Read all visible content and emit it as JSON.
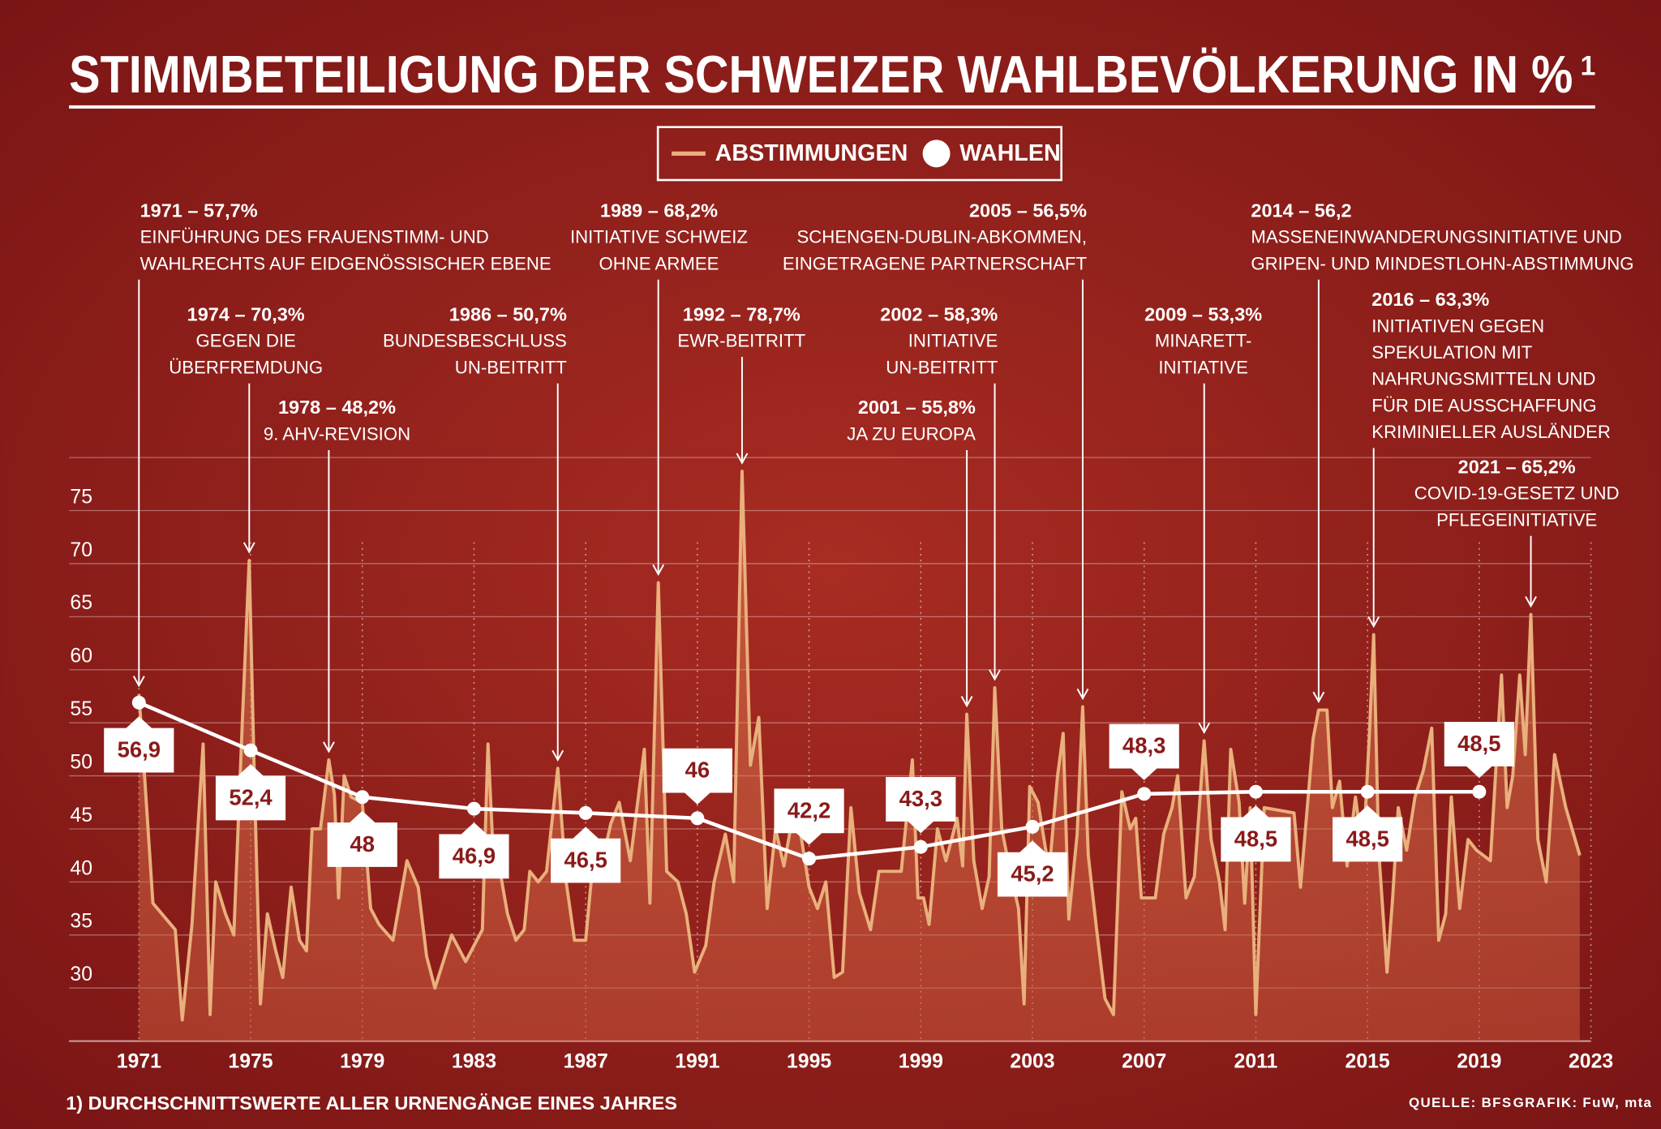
{
  "chart_data": {
    "type": "line",
    "title": "STIMMBETEILIGUNG DER SCHWEIZER WAHLBEVÖLKERUNG IN %",
    "title_footnote_mark": "1",
    "footnote": "1) DURCHSCHNITTSWERTE ALLER URNENGÄNGE EINES JAHRES",
    "source": "QUELLE: BFS",
    "credit": "GRAFIK: FuW, mta",
    "xlim": [
      1971,
      2023
    ],
    "xticks": [
      1971,
      1975,
      1979,
      1983,
      1987,
      1991,
      1995,
      1999,
      2003,
      2007,
      2011,
      2015,
      2019,
      2023
    ],
    "ylim": [
      25,
      80
    ],
    "yticks": [
      30,
      35,
      40,
      45,
      50,
      55,
      60,
      65,
      70,
      75
    ],
    "grid": true,
    "legend": "top",
    "series": [
      {
        "name": "ABSTIMMUNGEN",
        "color": "#e9b07c",
        "x": [
          1971.0,
          1971.15,
          1971.5,
          1972.3,
          1972.55,
          1972.9,
          1973.3,
          1973.55,
          1973.75,
          1974.1,
          1974.4,
          1974.7,
          1974.95,
          1975.15,
          1975.35,
          1975.6,
          1975.9,
          1976.15,
          1976.45,
          1976.75,
          1977.0,
          1977.2,
          1977.5,
          1977.8,
          1978.0,
          1978.15,
          1978.35,
          1978.6,
          1979.0,
          1979.3,
          1979.6,
          1980.1,
          1980.6,
          1981.0,
          1981.3,
          1981.6,
          1982.2,
          1982.7,
          1983.1,
          1983.3,
          1983.5,
          1983.7,
          1983.9,
          1984.2,
          1984.5,
          1984.8,
          1985.0,
          1985.3,
          1985.6,
          1986.0,
          1986.3,
          1986.6,
          1987.0,
          1987.3,
          1987.6,
          1987.9,
          1988.2,
          1988.6,
          1989.1,
          1989.3,
          1989.6,
          1989.9,
          1990.3,
          1990.6,
          1990.9,
          1991.3,
          1991.6,
          1992.0,
          1992.3,
          1992.6,
          1992.9,
          1993.2,
          1993.5,
          1993.8,
          1994.1,
          1994.4,
          1994.7,
          1995.0,
          1995.3,
          1995.6,
          1995.9,
          1996.2,
          1996.5,
          1996.8,
          1997.2,
          1997.5,
          1997.9,
          1998.3,
          1998.7,
          1998.9,
          1999.1,
          1999.3,
          1999.6,
          1999.9,
          2000.3,
          2000.5,
          2000.65,
          2000.9,
          2001.2,
          2001.45,
          2001.65,
          2001.9,
          2002.2,
          2002.5,
          2002.7,
          2002.9,
          2003.2,
          2003.6,
          2003.9,
          2004.1,
          2004.3,
          2004.6,
          2004.8,
          2005.0,
          2005.3,
          2005.6,
          2005.9,
          2006.2,
          2006.5,
          2006.7,
          2006.9,
          2007.4,
          2007.7,
          2008.0,
          2008.2,
          2008.5,
          2008.8,
          2009.15,
          2009.4,
          2009.7,
          2009.9,
          2010.1,
          2010.4,
          2010.6,
          2010.8,
          2011.0,
          2011.3,
          2012.37,
          2012.6,
          2013.05,
          2013.25,
          2013.55,
          2013.74,
          2014.0,
          2014.27,
          2014.57,
          2014.84,
          2015.07,
          2015.22,
          2015.4,
          2015.7,
          2015.9,
          2016.1,
          2016.4,
          2016.7,
          2017.0,
          2017.3,
          2017.55,
          2017.8,
          2018.0,
          2018.3,
          2018.6,
          2018.9,
          2019.4,
          2019.8,
          2020.0,
          2020.2,
          2020.45,
          2020.65,
          2020.85,
          2021.1,
          2021.4,
          2021.7,
          2022.1,
          2022.6
        ],
        "values": [
          57.7,
          52,
          38,
          35.5,
          27,
          36,
          53,
          27.5,
          40,
          37,
          35,
          55,
          70.3,
          48,
          28.5,
          37,
          33.5,
          31,
          39.5,
          34.5,
          33.5,
          45,
          45,
          51.5,
          48.2,
          38.5,
          50,
          48,
          47.5,
          37.5,
          36,
          34.5,
          42,
          39.5,
          33,
          30,
          35,
          32.5,
          34.5,
          35.5,
          53,
          42,
          41.5,
          37,
          34.5,
          35.5,
          41,
          40,
          41,
          50.7,
          40,
          34.5,
          34.5,
          43,
          42,
          45.5,
          47.5,
          42,
          52.5,
          38,
          68.2,
          41,
          40,
          37,
          31.5,
          34,
          40,
          44.5,
          40,
          78.7,
          51,
          55.5,
          37.5,
          45,
          41.5,
          46,
          44.5,
          39.5,
          37.5,
          40,
          31,
          31.5,
          47,
          39,
          35.5,
          41,
          41,
          41,
          51.5,
          38.5,
          38.5,
          36,
          45,
          42,
          46,
          41.5,
          55.8,
          42,
          37.5,
          40.5,
          58.3,
          45,
          41,
          37.5,
          28.5,
          49,
          47.5,
          41,
          50,
          54,
          36.5,
          44.5,
          56.5,
          42.5,
          35.5,
          29,
          27.5,
          48.5,
          45,
          46,
          38.5,
          38.5,
          44.5,
          47,
          50,
          38.5,
          40.5,
          53.3,
          44,
          40,
          35.5,
          52.5,
          47.5,
          38,
          47,
          27.5,
          47,
          46.5,
          39.5,
          53.5,
          56.2,
          56.2,
          47,
          49.5,
          41.5,
          48,
          42.5,
          54,
          63.3,
          43,
          31.5,
          38.5,
          47,
          43,
          48,
          50.5,
          54.5,
          34.5,
          37,
          48,
          37.5,
          44,
          43,
          42,
          59.5,
          47,
          50,
          59.5,
          52,
          65.2,
          44,
          40,
          52,
          47,
          42.5
        ]
      },
      {
        "name": "WAHLEN",
        "color": "#ffffff",
        "x": [
          1971,
          1975,
          1979,
          1983,
          1987,
          1991,
          1995,
          1999,
          2003,
          2007,
          2011,
          2015,
          2019
        ],
        "values": [
          56.9,
          52.4,
          48,
          46.9,
          46.5,
          46,
          42.2,
          43.3,
          45.2,
          48.3,
          48.5,
          48.5,
          48.5
        ],
        "value_labels": [
          "56,9",
          "52,4",
          "48",
          "46,9",
          "46,5",
          "46",
          "42,2",
          "43,3",
          "45,2",
          "48,3",
          "48,5",
          "48,5",
          "48,5"
        ]
      }
    ],
    "annotations": [
      {
        "title": "1971 – 57,7%",
        "lines": [
          "EINFÜHRUNG DES FRAUENSTIMM- UND",
          "WAHLRECHTS AUF EIDGENÖSSISCHER EBENE"
        ]
      },
      {
        "title": "1974 – 70,3%",
        "lines": [
          "GEGEN DIE",
          "ÜBERFREMDUNG"
        ]
      },
      {
        "title": "1978 – 48,2%",
        "lines": [
          "9. AHV-REVISION"
        ]
      },
      {
        "title": "1986 – 50,7%",
        "lines": [
          "BUNDESBESCHLUSS",
          "UN-BEITRITT"
        ]
      },
      {
        "title": "1989 – 68,2%",
        "lines": [
          "INITIATIVE SCHWEIZ",
          "OHNE ARMEE"
        ]
      },
      {
        "title": "1992 – 78,7%",
        "lines": [
          "EWR-BEITRITT"
        ]
      },
      {
        "title": "2001 – 55,8%",
        "lines": [
          "JA ZU EUROPA"
        ]
      },
      {
        "title": "2002 – 58,3%",
        "lines": [
          "INITIATIVE",
          "UN-BEITRITT"
        ]
      },
      {
        "title": "2005 – 56,5%",
        "lines": [
          "SCHENGEN-DUBLIN-ABKOMMEN,",
          "EINGETRAGENE PARTNERSCHAFT"
        ]
      },
      {
        "title": "2009 – 53,3%",
        "lines": [
          "MINARETT-",
          "INITIATIVE"
        ]
      },
      {
        "title": "2014 – 56,2",
        "lines": [
          "MASSENEINWANDERUNGSINITIATIVE UND",
          "GRIPEN- UND MINDESTLOHN-ABSTIMMUNG"
        ]
      },
      {
        "title": "2016 – 63,3%",
        "lines": [
          "INITIATIVEN GEGEN",
          "SPEKULATION MIT",
          "NAHRUNGSMITTELN UND",
          "FÜR DIE AUSSCHAFFUNG",
          "KRIMINIELLER AUSLÄNDER"
        ]
      },
      {
        "title": "2021 – 65,2%",
        "lines": [
          "COVID-19-GESETZ UND",
          "PFLEGEINITIATIVE"
        ]
      }
    ]
  }
}
